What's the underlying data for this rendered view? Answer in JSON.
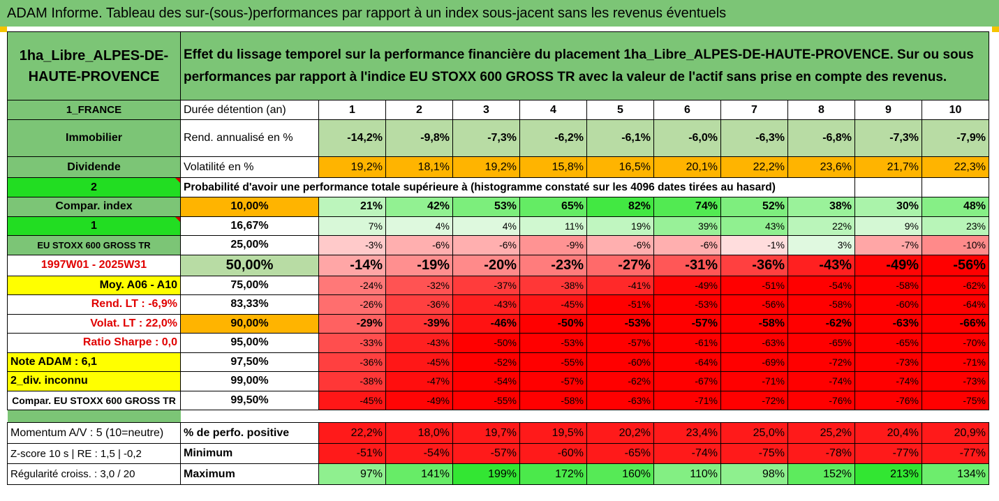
{
  "title": "ADAM Informe. Tableau des sur-(sous-)performances par rapport à un index sous-jacent sans les revenus éventuels",
  "fund": {
    "name_line1": "1ha_Libre_ALPES-DE-",
    "name_line2": "HAUTE-PROVENCE"
  },
  "description_line1": "Effet du lissage temporel sur la performance financière du placement 1ha_Libre_ALPES-DE-HAUTE-PROVENCE. Sur ou sous",
  "description_line2": "performances par rapport à l'indice EU STOXX 600 GROSS TR avec la valeur de l'actif sans prise en compte des revenus.",
  "left_labels": {
    "country": "1_FRANCE",
    "category": "Immobilier",
    "dividende": "Dividende",
    "num2": "2",
    "compar_index": "Compar. index",
    "num1": "1",
    "index_name": "EU STOXX 600 GROSS TR",
    "period": "1997W01 - 2025W31",
    "moy": "Moy. A06 - A10",
    "rend_lt": "Rend. LT :   -6,9%",
    "volat_lt": "Volat. LT :   22,0%",
    "sharpe": "Ratio Sharpe :   0,0",
    "note": "Note ADAM : 6,1",
    "div": "2_div. inconnu",
    "compar_full": "Compar. EU STOXX 600 GROSS TR",
    "momentum": "Momentum A/V : 5 (10=neutre)",
    "zscore": "Z-score 10 s  |  RE : 1,5  |  -0,2",
    "regularite": "Régularité croiss. : 3,0 / 20"
  },
  "row_labels": {
    "duree": "Durée détention (an)",
    "rend": "Rend. annualisé en %",
    "volat": "Volatilité en %",
    "prob": "Probabilité d'avoir une performance totale supérieure à (histogramme constaté sur les 4096 dates tirées au hasard)",
    "perf_pos": "% de perfo. positive",
    "minimum": "Minimum",
    "maximum": "Maximum"
  },
  "years": [
    "1",
    "2",
    "3",
    "4",
    "5",
    "6",
    "7",
    "8",
    "9",
    "10"
  ],
  "rend": [
    "-14,2%",
    "-9,8%",
    "-7,3%",
    "-6,2%",
    "-6,1%",
    "-6,0%",
    "-6,3%",
    "-6,8%",
    "-7,3%",
    "-7,9%"
  ],
  "volat": [
    "19,2%",
    "18,1%",
    "19,2%",
    "15,8%",
    "16,5%",
    "20,1%",
    "22,2%",
    "23,6%",
    "21,7%",
    "22,3%"
  ],
  "percentiles": [
    {
      "p": "10,00%",
      "v": [
        "21%",
        "42%",
        "53%",
        "65%",
        "82%",
        "74%",
        "52%",
        "38%",
        "30%",
        "48%"
      ]
    },
    {
      "p": "16,67%",
      "v": [
        "7%",
        "4%",
        "4%",
        "11%",
        "19%",
        "39%",
        "43%",
        "22%",
        "9%",
        "23%"
      ]
    },
    {
      "p": "25,00%",
      "v": [
        "-3%",
        "-6%",
        "-6%",
        "-9%",
        "-6%",
        "-6%",
        "-1%",
        "3%",
        "-7%",
        "-10%"
      ]
    },
    {
      "p": "50,00%",
      "v": [
        "-14%",
        "-19%",
        "-20%",
        "-23%",
        "-27%",
        "-31%",
        "-36%",
        "-43%",
        "-49%",
        "-56%"
      ]
    },
    {
      "p": "75,00%",
      "v": [
        "-24%",
        "-32%",
        "-37%",
        "-38%",
        "-41%",
        "-49%",
        "-51%",
        "-54%",
        "-58%",
        "-62%"
      ]
    },
    {
      "p": "83,33%",
      "v": [
        "-26%",
        "-36%",
        "-43%",
        "-45%",
        "-51%",
        "-53%",
        "-56%",
        "-58%",
        "-60%",
        "-64%"
      ]
    },
    {
      "p": "90,00%",
      "v": [
        "-29%",
        "-39%",
        "-46%",
        "-50%",
        "-53%",
        "-57%",
        "-58%",
        "-62%",
        "-63%",
        "-66%"
      ]
    },
    {
      "p": "95,00%",
      "v": [
        "-33%",
        "-43%",
        "-50%",
        "-53%",
        "-57%",
        "-61%",
        "-63%",
        "-65%",
        "-65%",
        "-70%"
      ]
    },
    {
      "p": "97,50%",
      "v": [
        "-36%",
        "-45%",
        "-52%",
        "-55%",
        "-60%",
        "-64%",
        "-69%",
        "-72%",
        "-73%",
        "-71%"
      ]
    },
    {
      "p": "99,00%",
      "v": [
        "-38%",
        "-47%",
        "-54%",
        "-57%",
        "-62%",
        "-67%",
        "-71%",
        "-74%",
        "-74%",
        "-73%"
      ]
    },
    {
      "p": "99,50%",
      "v": [
        "-45%",
        "-49%",
        "-55%",
        "-58%",
        "-63%",
        "-71%",
        "-72%",
        "-76%",
        "-76%",
        "-75%"
      ]
    }
  ],
  "perf_pos": [
    "22,2%",
    "18,0%",
    "19,7%",
    "19,5%",
    "20,2%",
    "23,4%",
    "25,0%",
    "25,2%",
    "20,4%",
    "20,9%"
  ],
  "minimum": [
    "-51%",
    "-54%",
    "-57%",
    "-60%",
    "-65%",
    "-74%",
    "-75%",
    "-78%",
    "-77%",
    "-77%"
  ],
  "maximum": [
    "97%",
    "141%",
    "199%",
    "172%",
    "160%",
    "110%",
    "98%",
    "152%",
    "213%",
    "134%"
  ],
  "colors": {
    "header_green": "#7cc576",
    "orange": "#ffb400",
    "yellow": "#ffff00",
    "lime": "#22dd22",
    "red": "#ff0000"
  }
}
